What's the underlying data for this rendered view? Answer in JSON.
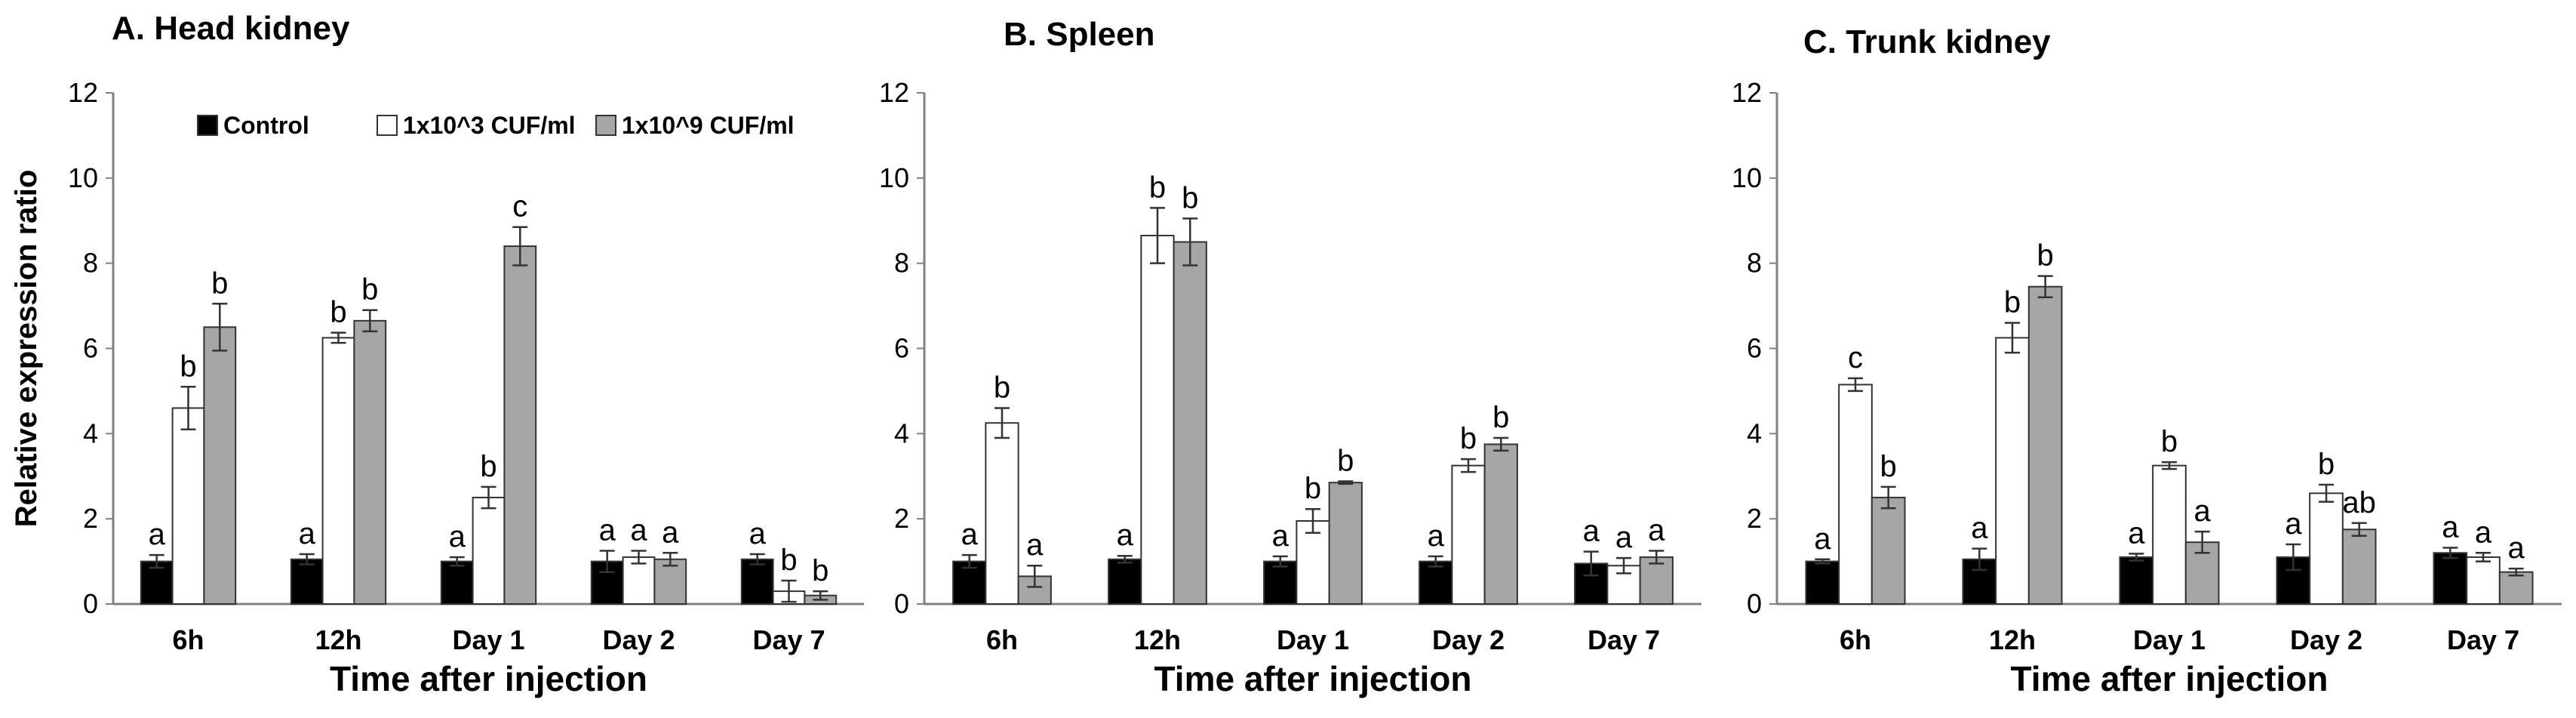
{
  "figure": {
    "colors": {
      "Control": "#000000",
      "1x10^3 CUF/ml": "#ffffff",
      "1x10^9 CUF/ml": "#a6a6a6",
      "axis": "#808080",
      "bar_stroke": "#333333"
    }
  },
  "chart_data": [
    {
      "type": "bar",
      "title": "A. Head kidney",
      "xlabel": "Time after injection",
      "ylabel": "Relative expression ratio",
      "ylim": [
        0,
        12
      ],
      "yticks": [
        0,
        2,
        4,
        6,
        8,
        10,
        12
      ],
      "categories": [
        "6h",
        "12h",
        "Day 1",
        "Day 2",
        "Day 7"
      ],
      "legend": [
        "Control",
        "1x10^3 CUF/ml",
        "1x10^9 CUF/ml"
      ],
      "legend_position": "top",
      "series": [
        {
          "name": "Control",
          "values": [
            1.0,
            1.05,
            1.0,
            1.0,
            1.05
          ],
          "errors": [
            0.15,
            0.12,
            0.1,
            0.25,
            0.12
          ],
          "labels": [
            "a",
            "a",
            "a",
            "a",
            "a"
          ]
        },
        {
          "name": "1x10^3 CUF/ml",
          "values": [
            4.6,
            6.25,
            2.5,
            1.1,
            0.3
          ],
          "errors": [
            0.5,
            0.12,
            0.25,
            0.15,
            0.25
          ],
          "labels": [
            "b",
            "b",
            "b",
            "a",
            "b"
          ]
        },
        {
          "name": "1x10^9 CUF/ml",
          "values": [
            6.5,
            6.65,
            8.4,
            1.05,
            0.2
          ],
          "errors": [
            0.55,
            0.25,
            0.45,
            0.15,
            0.1
          ],
          "labels": [
            "b",
            "b",
            "c",
            "a",
            "b"
          ]
        }
      ]
    },
    {
      "type": "bar",
      "title": "B. Spleen",
      "xlabel": "Time after injection",
      "ylabel": "",
      "ylim": [
        0,
        12
      ],
      "yticks": [
        0,
        2,
        4,
        6,
        8,
        10,
        12
      ],
      "categories": [
        "6h",
        "12h",
        "Day 1",
        "Day 2",
        "Day 7"
      ],
      "series": [
        {
          "name": "Control",
          "values": [
            1.0,
            1.05,
            1.0,
            1.0,
            0.95
          ],
          "errors": [
            0.15,
            0.08,
            0.12,
            0.12,
            0.28
          ],
          "labels": [
            "a",
            "a",
            "a",
            "a",
            "a"
          ]
        },
        {
          "name": "1x10^3 CUF/ml",
          "values": [
            4.25,
            8.65,
            1.95,
            3.25,
            0.9
          ],
          "errors": [
            0.35,
            0.65,
            0.28,
            0.15,
            0.18
          ],
          "labels": [
            "b",
            "b",
            "b",
            "b",
            "a"
          ]
        },
        {
          "name": "1x10^9 CUF/ml",
          "values": [
            0.65,
            8.5,
            2.85,
            3.75,
            1.1
          ],
          "errors": [
            0.25,
            0.55,
            0.03,
            0.15,
            0.15
          ],
          "labels": [
            "a",
            "b",
            "b",
            "b",
            "a"
          ]
        }
      ]
    },
    {
      "type": "bar",
      "title": "C. Trunk kidney",
      "xlabel": "Time after injection",
      "ylabel": "",
      "ylim": [
        0,
        12
      ],
      "yticks": [
        0,
        2,
        4,
        6,
        8,
        10,
        12
      ],
      "categories": [
        "6h",
        "12h",
        "Day 1",
        "Day 2",
        "Day 7"
      ],
      "series": [
        {
          "name": "Control",
          "values": [
            1.0,
            1.05,
            1.1,
            1.1,
            1.2
          ],
          "errors": [
            0.05,
            0.25,
            0.08,
            0.3,
            0.12
          ],
          "labels": [
            "a",
            "a",
            "a",
            "a",
            "a"
          ]
        },
        {
          "name": "1x10^3 CUF/ml",
          "values": [
            5.15,
            6.25,
            3.25,
            2.6,
            1.1
          ],
          "errors": [
            0.15,
            0.35,
            0.08,
            0.2,
            0.1
          ],
          "labels": [
            "c",
            "b",
            "b",
            "b",
            "a"
          ]
        },
        {
          "name": "1x10^9 CUF/ml",
          "values": [
            2.5,
            7.45,
            1.45,
            1.75,
            0.75
          ],
          "errors": [
            0.25,
            0.25,
            0.25,
            0.15,
            0.08
          ],
          "labels": [
            "b",
            "b",
            "a",
            "ab",
            "a"
          ]
        }
      ]
    }
  ]
}
